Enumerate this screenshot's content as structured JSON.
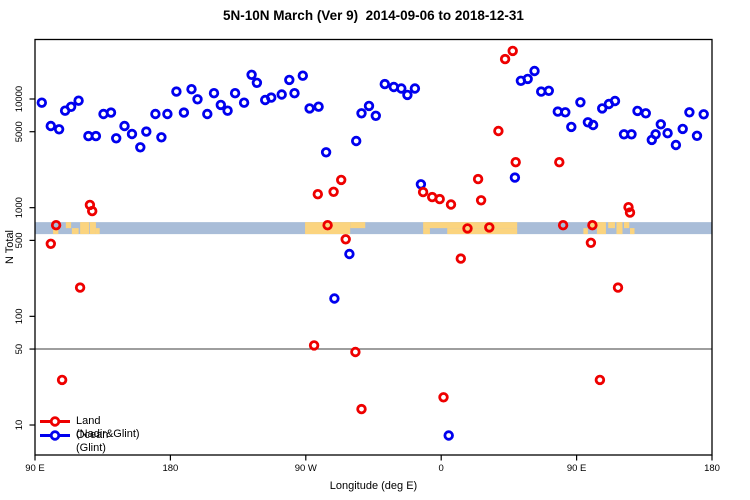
{
  "title": "5N-10N March (Ver 9)  2014-09-06 to 2018-12-31",
  "legend": {
    "items": [
      {
        "label": "Land (Nadir&Glint)",
        "color": "#ee0000"
      },
      {
        "label": "Ocean (Glint)",
        "color": "#0000ee"
      }
    ]
  },
  "chart_data": {
    "type": "scatter",
    "title": "5N-10N March (Ver 9)  2014-09-06 to 2018-12-31",
    "xlabel": "Longitude (deg E)",
    "ylabel": "N Total",
    "x_axis": {
      "range_deg": [
        90,
        540
      ],
      "ticks": [
        {
          "lon": 90,
          "label": "90 E"
        },
        {
          "lon": 180,
          "label": "180"
        },
        {
          "lon": 270,
          "label": "90 W"
        },
        {
          "lon": 360,
          "label": "0"
        },
        {
          "lon": 450,
          "label": "90 E"
        },
        {
          "lon": 540,
          "label": "180"
        }
      ]
    },
    "y_axis": {
      "scale": "log",
      "range": [
        5.3,
        35000
      ],
      "ticks": [
        {
          "n": 10,
          "label": "10"
        },
        {
          "n": 50,
          "label": "50"
        },
        {
          "n": 100,
          "label": "100"
        },
        {
          "n": 500,
          "label": "500"
        },
        {
          "n": 1000,
          "label": "1000"
        },
        {
          "n": 5000,
          "label": "5000"
        },
        {
          "n": 10000,
          "label": "10000"
        }
      ]
    },
    "reference_line_n": 50,
    "map_band": {
      "ocean_color": "#a9bdd8",
      "land_color": "#fbd47f",
      "n_range": [
        571,
        736
      ],
      "land_patches": [
        {
          "lon": [
            102,
            105.5
          ],
          "half": "bottom"
        },
        {
          "lon": [
            110.5,
            114
          ],
          "half": "top"
        },
        {
          "lon": [
            114.5,
            119
          ],
          "half": "bottom"
        },
        {
          "lon": [
            120,
            126
          ],
          "half": "full"
        },
        {
          "lon": [
            126.5,
            130.5
          ],
          "half": "full"
        },
        {
          "lon": [
            130.5,
            133
          ],
          "half": "bottom"
        },
        {
          "lon": [
            269.5,
            299.5
          ],
          "half": "full"
        },
        {
          "lon": [
            299.5,
            309.5
          ],
          "half": "top"
        },
        {
          "lon": [
            348,
            410.5
          ],
          "half": "top"
        },
        {
          "lon": [
            348,
            352.5
          ],
          "half": "bottom"
        },
        {
          "lon": [
            364,
            410.5
          ],
          "half": "bottom"
        },
        {
          "lon": [
            454.5,
            457.5
          ],
          "half": "bottom"
        },
        {
          "lon": [
            459,
            463
          ],
          "half": "top"
        },
        {
          "lon": [
            463.5,
            469.5
          ],
          "half": "full"
        },
        {
          "lon": [
            471,
            475.5
          ],
          "half": "top"
        },
        {
          "lon": [
            476.5,
            480.5
          ],
          "half": "full"
        },
        {
          "lon": [
            481.5,
            485
          ],
          "half": "top"
        },
        {
          "lon": [
            485.5,
            488.5
          ],
          "half": "bottom"
        }
      ]
    },
    "series": [
      {
        "name": "Land (Nadir&Glint)",
        "color": "#ee0000",
        "points": [
          [
            126.5,
            1060
          ],
          [
            128,
            930
          ],
          [
            104,
            690
          ],
          [
            100.5,
            465
          ],
          [
            120,
            184
          ],
          [
            108,
            26
          ],
          [
            278,
            1330
          ],
          [
            288.5,
            1400
          ],
          [
            293.5,
            1800
          ],
          [
            284.5,
            690
          ],
          [
            296.5,
            512
          ],
          [
            275.5,
            54
          ],
          [
            303,
            47
          ],
          [
            307,
            14
          ],
          [
            348,
            1390
          ],
          [
            354,
            1250
          ],
          [
            359,
            1200
          ],
          [
            366.5,
            1070
          ],
          [
            384.5,
            1830
          ],
          [
            386.5,
            1170
          ],
          [
            398,
            5080
          ],
          [
            402.5,
            23300
          ],
          [
            407.5,
            27700
          ],
          [
            409.5,
            2620
          ],
          [
            438.5,
            2620
          ],
          [
            441,
            690
          ],
          [
            460.5,
            690
          ],
          [
            459.5,
            475
          ],
          [
            484.5,
            1010
          ],
          [
            485.5,
            900
          ],
          [
            477.5,
            184
          ],
          [
            465.5,
            26
          ],
          [
            361.5,
            18
          ],
          [
            373,
            340
          ],
          [
            377.5,
            645
          ],
          [
            392,
            658
          ]
        ]
      },
      {
        "name": "Ocean (Glint)",
        "color": "#0000ee",
        "points": [
          [
            94.5,
            9250
          ],
          [
            100.5,
            5640
          ],
          [
            106,
            5260
          ],
          [
            110,
            7800
          ],
          [
            114,
            8470
          ],
          [
            119,
            9640
          ],
          [
            125.5,
            4560
          ],
          [
            130.5,
            4560
          ],
          [
            135.5,
            7280
          ],
          [
            140.5,
            7500
          ],
          [
            144,
            4350
          ],
          [
            149.5,
            5640
          ],
          [
            154.5,
            4760
          ],
          [
            160,
            3590
          ],
          [
            164,
            5010
          ],
          [
            170,
            7280
          ],
          [
            174,
            4440
          ],
          [
            178,
            7280
          ],
          [
            184,
            11700
          ],
          [
            189,
            7500
          ],
          [
            194,
            12300
          ],
          [
            198,
            9930
          ],
          [
            204.5,
            7280
          ],
          [
            209,
            11300
          ],
          [
            213.5,
            8830
          ],
          [
            218,
            7800
          ],
          [
            223,
            11300
          ],
          [
            229,
            9250
          ],
          [
            234,
            16700
          ],
          [
            237.5,
            14100
          ],
          [
            243,
            9790
          ],
          [
            247,
            10300
          ],
          [
            254,
            11000
          ],
          [
            259,
            15000
          ],
          [
            262.5,
            11300
          ],
          [
            268,
            16400
          ],
          [
            272.5,
            8200
          ],
          [
            278.5,
            8500
          ],
          [
            283.5,
            3230
          ],
          [
            303.5,
            4110
          ],
          [
            307,
            7390
          ],
          [
            312,
            8640
          ],
          [
            316.5,
            7010
          ],
          [
            322.5,
            13700
          ],
          [
            328.5,
            12900
          ],
          [
            333.5,
            12500
          ],
          [
            337.5,
            10900
          ],
          [
            342.5,
            12500
          ],
          [
            346.5,
            1640
          ],
          [
            409,
            1890
          ],
          [
            413,
            14700
          ],
          [
            417.5,
            15300
          ],
          [
            422,
            18100
          ],
          [
            426.5,
            11700
          ],
          [
            431.5,
            11900
          ],
          [
            437.5,
            7650
          ],
          [
            442.5,
            7550
          ],
          [
            446.5,
            5540
          ],
          [
            452.5,
            9330
          ],
          [
            457.5,
            6100
          ],
          [
            461,
            5760
          ],
          [
            467,
            8200
          ],
          [
            471.5,
            8990
          ],
          [
            475.5,
            9580
          ],
          [
            481.5,
            4730
          ],
          [
            486.5,
            4730
          ],
          [
            490.5,
            7770
          ],
          [
            496,
            7390
          ],
          [
            500,
            4200
          ],
          [
            502.5,
            4730
          ],
          [
            506,
            5850
          ],
          [
            510.5,
            4840
          ],
          [
            516,
            3770
          ],
          [
            520.5,
            5310
          ],
          [
            525,
            7550
          ],
          [
            530,
            4590
          ],
          [
            534.5,
            7230
          ],
          [
            289,
            146
          ],
          [
            299,
            375
          ],
          [
            365,
            8
          ]
        ]
      }
    ]
  }
}
